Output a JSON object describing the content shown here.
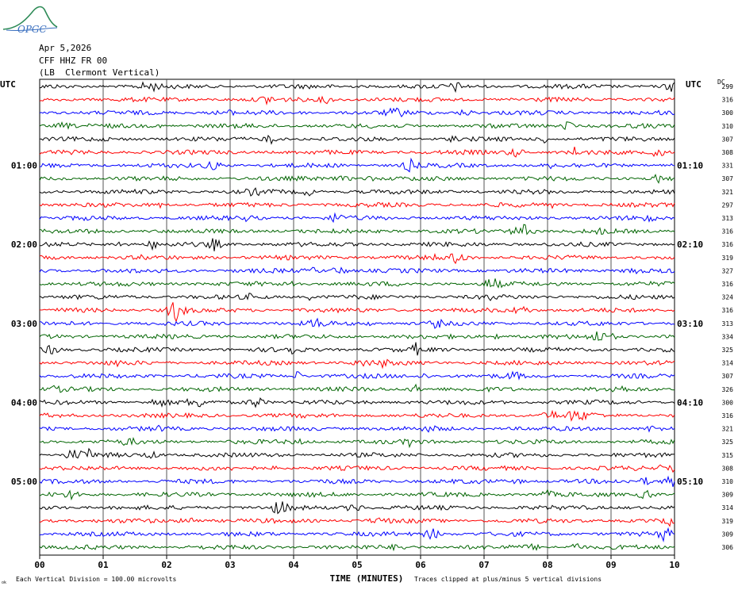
{
  "logo": {
    "text": "OPGC"
  },
  "header": {
    "date": "Apr 5,2026",
    "channel": "CFF HHZ FR 00",
    "location": "(LB  Clermont Vertical)"
  },
  "axes": {
    "left_utc": "UTC",
    "right_utc": "UTC",
    "dc_label": "DC",
    "xlabel": "TIME (MINUTES)",
    "footer_left": "Each Vertical Division =  100.00 microvolts",
    "footer_right": "Traces clipped at plus/minus 5 vertical divisions",
    "footer_mark": "ok"
  },
  "colors": {
    "black": "#000000",
    "red": "#ff0000",
    "blue": "#0000ff",
    "green": "#006400",
    "grid": "#000000"
  },
  "chart_data": {
    "type": "line",
    "title": "",
    "xlabel": "TIME (MINUTES)",
    "xlim": [
      0,
      10
    ],
    "x_ticks": [
      "00",
      "01",
      "02",
      "03",
      "04",
      "05",
      "06",
      "07",
      "08",
      "09",
      "10"
    ],
    "trace_colors": [
      "black",
      "red",
      "blue",
      "green"
    ],
    "left_time_labels": [
      {
        "row": 6,
        "label": "01:00"
      },
      {
        "row": 12,
        "label": "02:00"
      },
      {
        "row": 18,
        "label": "03:00"
      },
      {
        "row": 24,
        "label": "04:00"
      },
      {
        "row": 30,
        "label": "05:00"
      }
    ],
    "right_time_labels": [
      {
        "row": 6,
        "label": "01:10"
      },
      {
        "row": 12,
        "label": "02:10"
      },
      {
        "row": 18,
        "label": "03:10"
      },
      {
        "row": 24,
        "label": "04:10"
      },
      {
        "row": 30,
        "label": "05:10"
      }
    ],
    "dc_offsets": [
      299,
      316,
      300,
      310,
      307,
      308,
      331,
      307,
      321,
      297,
      313,
      316,
      316,
      319,
      327,
      316,
      324,
      316,
      313,
      334,
      325,
      314,
      307,
      326,
      300,
      316,
      321,
      325,
      315,
      308,
      310,
      309,
      314,
      319,
      309,
      306
    ]
  }
}
